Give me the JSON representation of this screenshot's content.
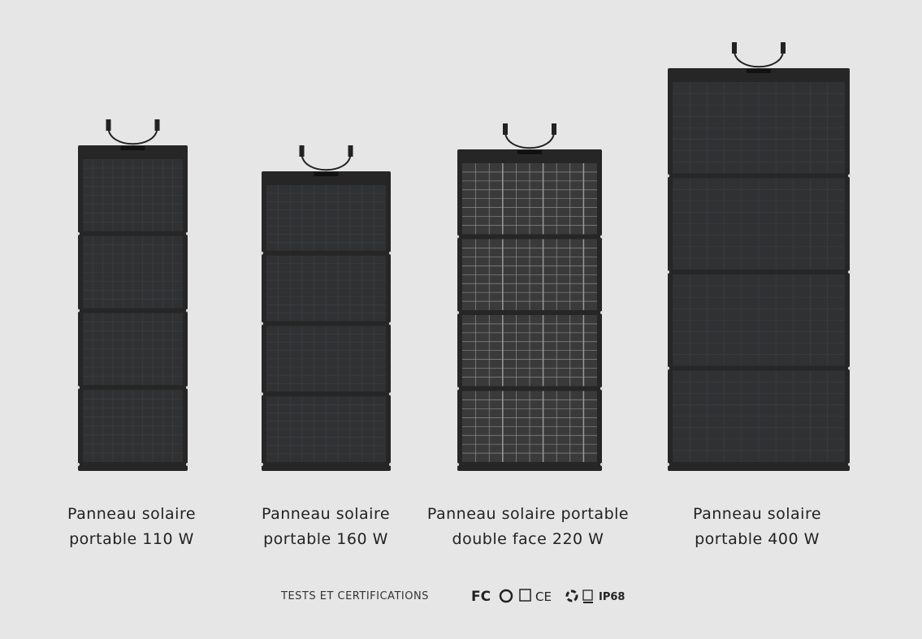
{
  "products": [
    {
      "label": [
        "Panneau solaire",
        "portable 110 W"
      ]
    },
    {
      "label": [
        "Panneau solaire",
        "portable 160 W"
      ]
    },
    {
      "label": [
        "Panneau solaire portable",
        "double face 220 W"
      ]
    },
    {
      "label": [
        "Panneau solaire",
        "portable 400 W"
      ]
    }
  ],
  "certifications": {
    "title": "TESTS ET CERTIFICATIONS",
    "marks": [
      "FC",
      "CE",
      "IP68"
    ]
  }
}
